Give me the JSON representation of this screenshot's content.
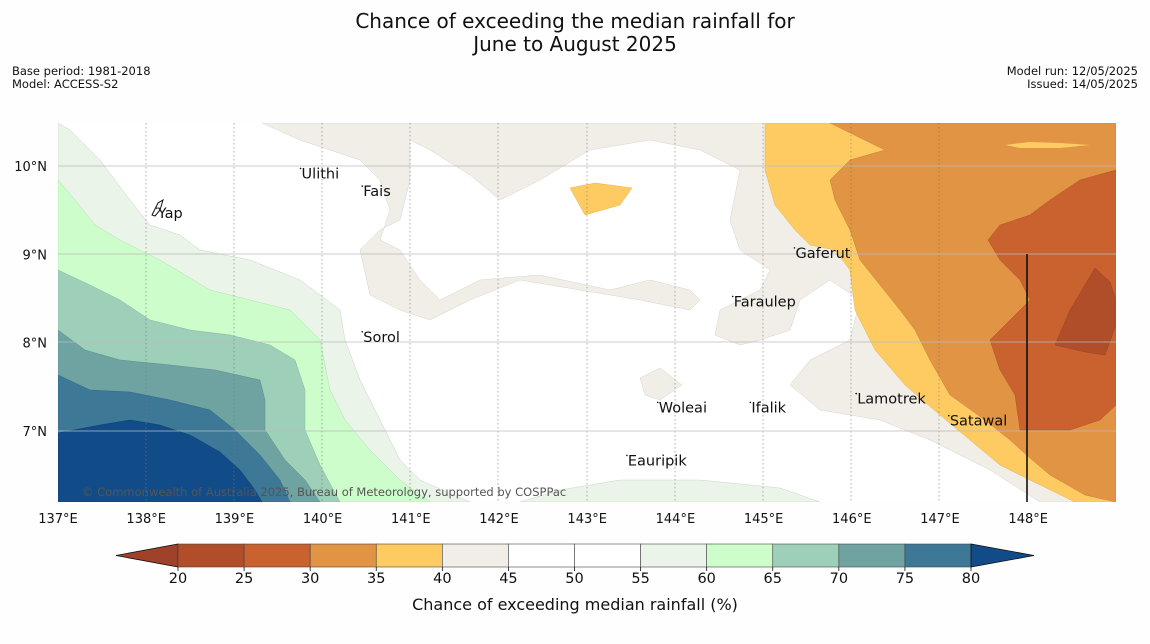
{
  "title": {
    "line1": "Chance of exceeding the median rainfall for",
    "line2": "June to August 2025"
  },
  "meta": {
    "base_period": "Base period: 1981-2018",
    "model": "Model: ACCESS-S2",
    "model_run": "Model run: 12/05/2025",
    "issued": "Issued: 14/05/2025"
  },
  "map": {
    "lon_labels": [
      "137°E",
      "138°E",
      "139°E",
      "140°E",
      "141°E",
      "142°E",
      "143°E",
      "144°E",
      "145°E",
      "146°E",
      "147°E",
      "148°E"
    ],
    "lat_labels": [
      "10°N",
      "9°N",
      "8°N",
      "7°N"
    ],
    "places": [
      {
        "name": "Ulithi",
        "lon": 139.75,
        "lat": 9.95
      },
      {
        "name": "Fais",
        "lon": 140.45,
        "lat": 9.75
      },
      {
        "name": "Yap",
        "lon": 138.12,
        "lat": 9.5
      },
      {
        "name": "Gaferut",
        "lon": 145.35,
        "lat": 9.05
      },
      {
        "name": "Faraulep",
        "lon": 144.65,
        "lat": 8.5
      },
      {
        "name": "Sorol",
        "lon": 140.45,
        "lat": 8.1
      },
      {
        "name": "Lamotrek",
        "lon": 146.05,
        "lat": 7.4
      },
      {
        "name": "Woleai",
        "lon": 143.8,
        "lat": 7.3
      },
      {
        "name": "Ifalik",
        "lon": 144.85,
        "lat": 7.3
      },
      {
        "name": "Satawal",
        "lon": 147.1,
        "lat": 7.15
      },
      {
        "name": "Eauripik",
        "lon": 143.45,
        "lat": 6.7
      }
    ],
    "copyright": "© Commonwealth of Australia 2025, Bureau of Meteorology, supported by COSPPac"
  },
  "colorbar": {
    "ticks": [
      "20",
      "25",
      "30",
      "35",
      "40",
      "45",
      "50",
      "55",
      "60",
      "65",
      "70",
      "75",
      "80"
    ],
    "colors": [
      "#b04e2a",
      "#c9622f",
      "#e19443",
      "#fecb63",
      "#f1ede7",
      "#ffffff",
      "#ffffff",
      "#eaf4e8",
      "#ccfdca",
      "#9ecfb8",
      "#6ea3a2",
      "#3e7897",
      "#124c88"
    ],
    "under_color": "#a0412a",
    "over_color": "#124c88",
    "label": "Chance of exceeding median rainfall (%)"
  }
}
